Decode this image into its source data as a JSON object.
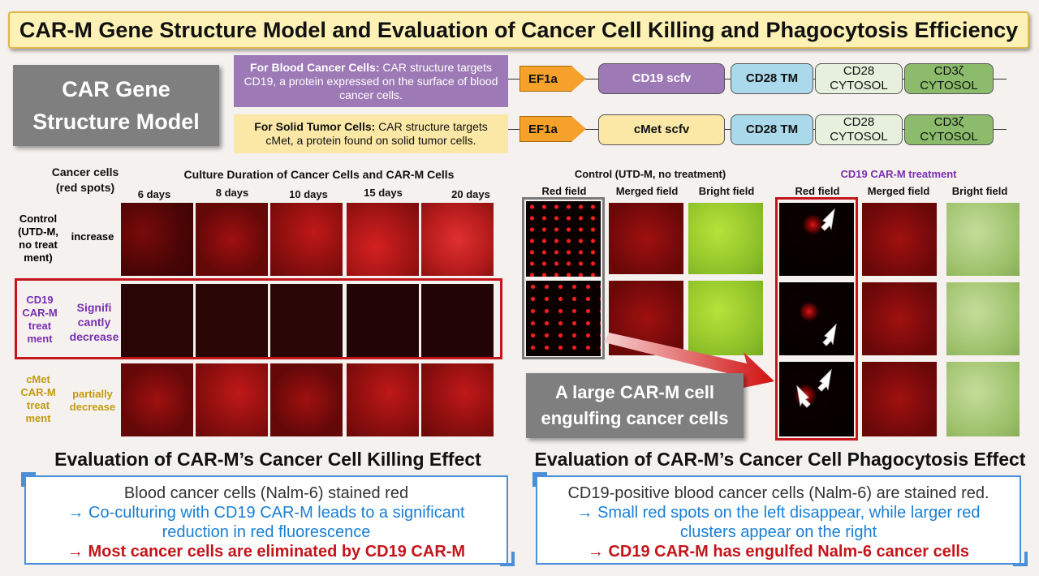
{
  "title": "CAR-M Gene Structure Model and Evaluation of Cancer Cell Killing and Phagocytosis Efficiency",
  "model_box": {
    "line1": "CAR Gene",
    "line2": "Structure Model"
  },
  "blood_target": {
    "bold": "For Blood Cancer Cells:",
    "text": " CAR structure targets CD19, a protein expressed on the surface of blood cancer cells."
  },
  "solid_target": {
    "bold": "For Solid Tumor Cells:",
    "text": " CAR structure targets cMet, a protein found on solid tumor cells."
  },
  "construct_blood": {
    "promoter": "EF1a",
    "scfv": "CD19 scfv",
    "tm": "CD28 TM",
    "cyto1": "CD28\nCYTOSOL",
    "cyto2": "CD3ζ\nCYTOSOL"
  },
  "construct_solid": {
    "promoter": "EF1a",
    "scfv": "cMet scfv",
    "tm": "CD28 TM",
    "cyto1": "CD28\nCYTOSOL",
    "cyto2": "CD3ζ\nCYTOSOL"
  },
  "killing": {
    "corner_label": "Cancer cells\n(red spots)",
    "duration_header": "Culture Duration of Cancer Cells and CAR-M Cells",
    "days": [
      "6 days",
      "8 days",
      "10 days",
      "15 days",
      "20 days"
    ],
    "rows": [
      {
        "group": "Control\n(UTD-M,\nno treat\nment)",
        "trend": "increase",
        "group_color": "#111111",
        "trend_color": "#111111"
      },
      {
        "group": "CD19\nCAR-M\ntreat\nment",
        "trend": "Signifi\ncantly\ndecrease",
        "group_color": "#7a2fb0",
        "trend_color": "#7a2fb0"
      },
      {
        "group": "cMet\nCAR-M\ntreat\nment",
        "trend": "partially\ndecrease",
        "group_color": "#c49a10",
        "trend_color": "#c49a10"
      }
    ],
    "eval_title": "Evaluation of CAR-M’s Cancer Cell Killing Effect",
    "callout": {
      "line1": "Blood cancer cells (Nalm-6) stained red",
      "line2": "→ Co-culturing with CD19 CAR-M leads to a significant reduction in red fluorescence",
      "line3": "→ Most cancer cells are eliminated by CD19 CAR-M"
    }
  },
  "phago": {
    "control_header": "Control (UTD-M, no treatment)",
    "treat_header": "CD19 CAR-M treatment",
    "fields": [
      "Red field",
      "Merged field",
      "Bright field"
    ],
    "callout_big": "A large CAR-M cell engulfing cancer cells",
    "eval_title": "Evaluation of CAR-M’s Cancer Cell Phagocytosis Effect",
    "callout": {
      "line1": "CD19-positive blood cancer cells (Nalm-6) are stained red.",
      "line2": "→ Small red spots on the left disappear, while larger red clusters appear on the right",
      "line3": "→ CD19 CAR-M has engulfed Nalm-6 cancer cells"
    }
  },
  "colors": {
    "accent_red": "#c4151a",
    "accent_blue": "#1a7fd4",
    "purple": "#7a2fb0",
    "gold": "#c49a10"
  }
}
